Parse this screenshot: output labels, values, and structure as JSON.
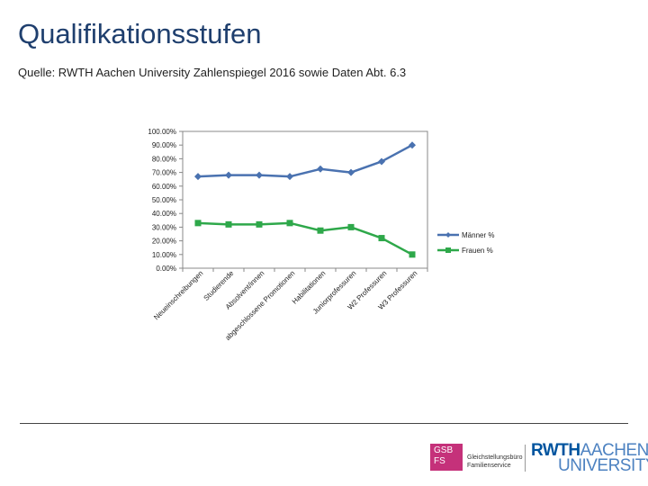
{
  "header": {
    "title": "Qualifikationsstufen",
    "source": "Quelle: RWTH Aachen University Zahlenspiegel 2016 sowie Daten Abt. 6.3"
  },
  "logos": {
    "gsb_label": "GSB FS",
    "gsb_text": "Gleichstellungsbüro Familienservice",
    "rwth_brand": "RWTH",
    "rwth_aachen": "AACHEN",
    "rwth_university": "UNIVERSITY"
  },
  "colors": {
    "maenner": "#4a72b0",
    "frauen": "#2ea84a",
    "gsb": "#c5317a",
    "rwth": "#00549f"
  },
  "chart_data": {
    "type": "line",
    "categories": [
      "Neueinschreibungen",
      "Studierende",
      "Absolvent/innen",
      "abgeschlossene Promotionen",
      "Habilitationen",
      "Juniorprofessuren",
      "W2 Professuren",
      "W3 Professuren"
    ],
    "series": [
      {
        "name": "Männer %",
        "values": [
          67,
          68,
          68,
          67,
          72.5,
          70,
          78,
          90
        ]
      },
      {
        "name": "Frauen %",
        "values": [
          33,
          32,
          32,
          33,
          27.5,
          30,
          22,
          10
        ]
      }
    ],
    "yticks": [
      "0.00%",
      "10.00%",
      "20.00%",
      "30.00%",
      "40.00%",
      "50.00%",
      "60.00%",
      "70.00%",
      "80.00%",
      "90.00%",
      "100.00%"
    ],
    "ylim": [
      0,
      100
    ],
    "legend_position": "right"
  }
}
